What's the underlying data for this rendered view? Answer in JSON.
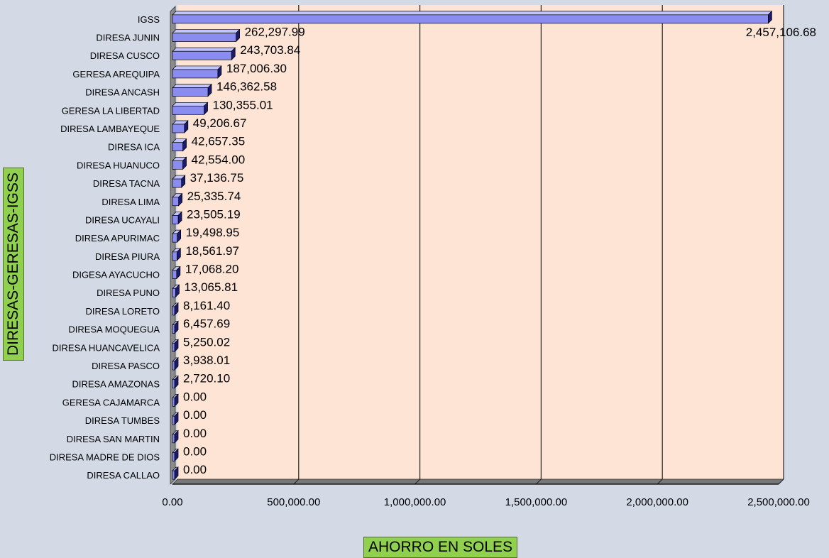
{
  "chart_data": {
    "type": "bar",
    "orientation": "horizontal",
    "title": "",
    "xlabel": "AHORRO EN SOLES",
    "ylabel": "DIRESAS-GERESAS-IGSS",
    "xlim": [
      0,
      2500000
    ],
    "x_ticks": [
      "0.00",
      "500,000.00",
      "1,000,000.00",
      "1,500,000.00",
      "2,000,000.00",
      "2,500,000.00"
    ],
    "x_tick_values": [
      0,
      500000,
      1000000,
      1500000,
      2000000,
      2500000
    ],
    "grid": "vertical",
    "categories": [
      "IGSS",
      "DIRESA JUNIN",
      "DIRESA CUSCO",
      "GERESA AREQUIPA",
      "DIRESA ANCASH",
      "GERESA LA LIBERTAD",
      "DIRESA LAMBAYEQUE",
      "DIRESA ICA",
      "DIRESA HUANUCO",
      "DIRESA TACNA",
      "DIRESA LIMA",
      "DIRESA UCAYALI",
      "DIRESA APURIMAC",
      "DIRESA PIURA",
      "DIGESA AYACUCHO",
      "DIRESA PUNO",
      "DIRESA LORETO",
      "DIRESA MOQUEGUA",
      "DIRESA HUANCAVELICA",
      "DIRESA PASCO",
      "DIRESA AMAZONAS",
      "GERESA CAJAMARCA",
      "DIRESA TUMBES",
      "DIRESA SAN MARTIN",
      "DIRESA MADRE DE DIOS",
      "DIRESA CALLAO"
    ],
    "values": [
      2457106.68,
      262297.99,
      243703.84,
      187006.3,
      146362.58,
      130355.01,
      49206.67,
      42657.35,
      42554.0,
      37136.75,
      25335.74,
      23505.19,
      19498.95,
      18561.97,
      17068.2,
      13065.81,
      8161.4,
      6457.69,
      5250.02,
      3938.01,
      2720.1,
      0,
      0,
      0,
      0,
      0
    ],
    "value_labels": [
      "2,457,106.68",
      "262,297.99",
      "243,703.84",
      "187,006.30",
      "146,362.58",
      "130,355.01",
      "49,206.67",
      "42,657.35",
      "42,554.00",
      "37,136.75",
      "25,335.74",
      "23,505.19",
      "19,498.95",
      "18,561.97",
      "17,068.20",
      "13,065.81",
      "8,161.40",
      "6,457.69",
      "5,250.02",
      "3,938.01",
      "2,720.10",
      "0.00",
      "0.00",
      "0.00",
      "0.00",
      "0.00"
    ],
    "colors": {
      "bar": "#8a8cf0",
      "bar_top": "#c2c4ff",
      "bar_side": "#1a1a6e",
      "plot_background": "#fde4d5",
      "wall": "#8c8c8c",
      "grid": "#222222",
      "page_background": "#d3dae6",
      "axis_title_background": "#8fd14f"
    }
  }
}
